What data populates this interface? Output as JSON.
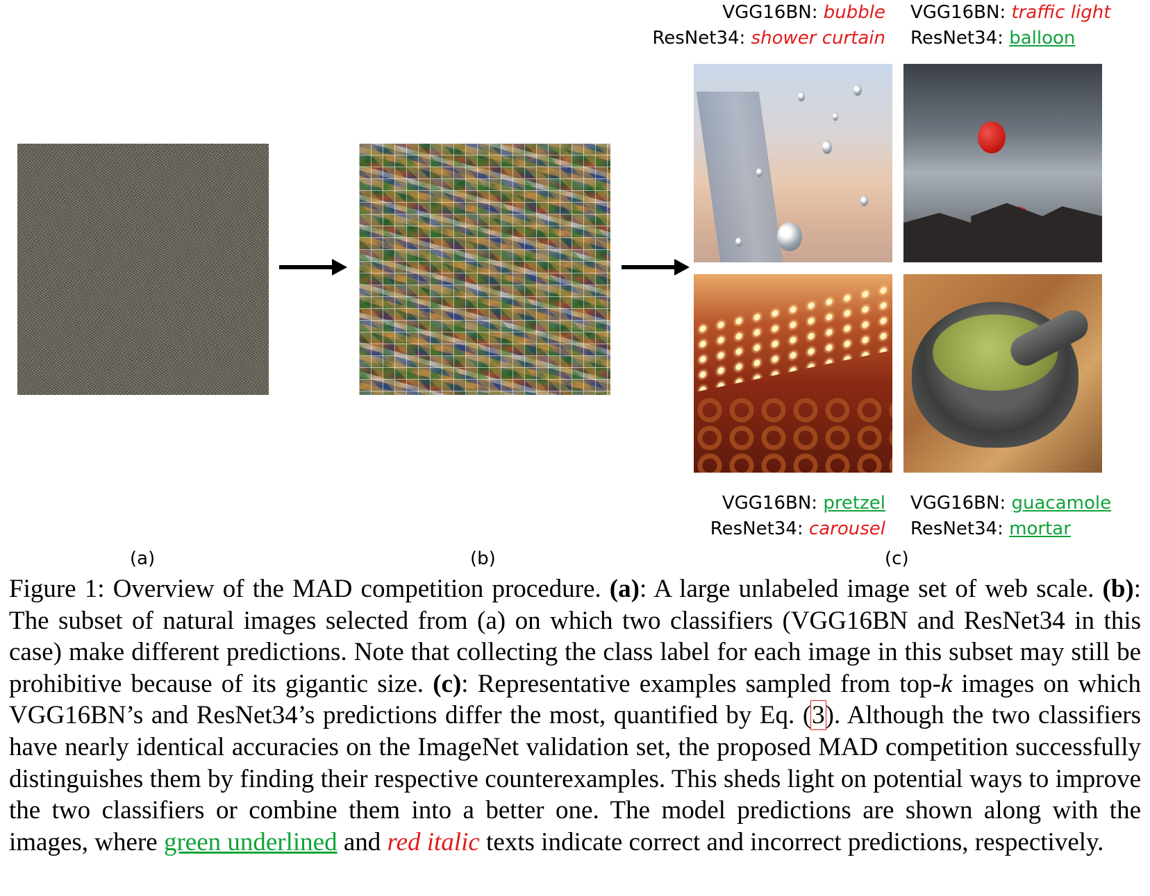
{
  "panels": {
    "a": {
      "label": "(a)"
    },
    "b": {
      "label": "(b)"
    },
    "c": {
      "label": "(c)"
    }
  },
  "predictions": [
    {
      "vgg_prefix": "VGG16BN: ",
      "vgg": "bubble",
      "vgg_correct": false,
      "resnet_prefix": "ResNet34: ",
      "resnet": "shower curtain",
      "resnet_correct": false
    },
    {
      "vgg_prefix": "VGG16BN: ",
      "vgg": "traffic light",
      "vgg_correct": false,
      "resnet_prefix": "ResNet34: ",
      "resnet": "balloon",
      "resnet_correct": true
    },
    {
      "vgg_prefix": "VGG16BN: ",
      "vgg": "pretzel",
      "vgg_correct": true,
      "resnet_prefix": "ResNet34: ",
      "resnet": "carousel",
      "resnet_correct": false
    },
    {
      "vgg_prefix": "VGG16BN: ",
      "vgg": "guacamole",
      "vgg_correct": true,
      "resnet_prefix": "ResNet34: ",
      "resnet": "mortar",
      "resnet_correct": true
    }
  ],
  "caption": {
    "figure_label": "Figure 1:",
    "intro": " Overview of the MAD competition procedure. ",
    "a_bold": "(a)",
    "a_text": ": A large unlabeled image set of web scale. ",
    "b_bold": "(b)",
    "b_text": ": The subset of natural images selected from (a) on which two classifiers (VGG16BN and ResNet34 in this case) make different predictions. Note that collecting the class label for each image in this subset may still be prohibitive because of its gigantic size. ",
    "c_bold": "(c)",
    "c_text_1": ": Representative examples sampled from top-",
    "c_k": "k",
    "c_text_2": " images on which VGG16BN’s and ResNet34’s predictions differ the most, quantified by Eq. (",
    "eq_ref": "3",
    "c_text_3": "). Although the two classifiers have nearly identical accuracies on the ImageNet validation set, the proposed MAD competition successfully distinguishes them by finding their respective counterexamples. This sheds light on potential ways to improve the two classifiers or combine them into a better one. The model predictions are shown along with the images, where ",
    "green_text": "green underlined",
    "mid_text": " and ",
    "red_text": "red italic",
    "end_text": " texts indicate correct and incorrect predictions, respectively."
  },
  "colors": {
    "correct": "#10a33a",
    "incorrect": "#e31b1b"
  }
}
